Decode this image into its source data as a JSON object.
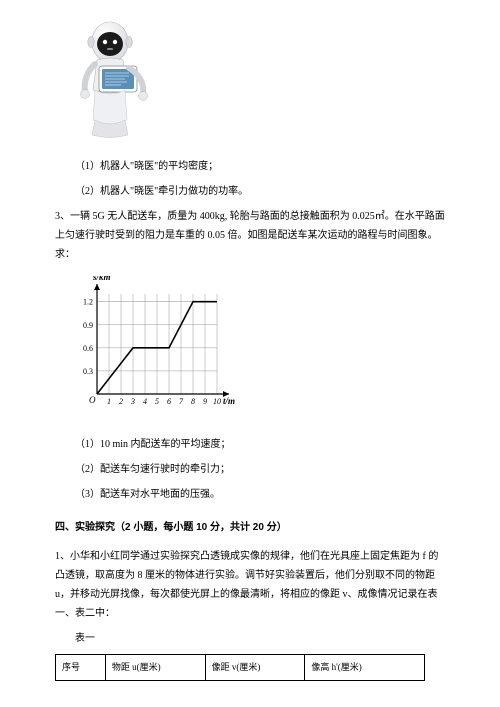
{
  "robot_svg": {
    "body_color": "#e8eaed",
    "screen_color": "#5a8fb8",
    "outline": "#444444"
  },
  "q1_1": "（1）机器人\"晓医\"的平均密度；",
  "q1_2": "（2）机器人\"晓医\"牵引力做功的功率。",
  "q3_intro": "3、一辆 5G 无人配送车，质量为 400kg, 轮胎与路面的总接触面积为 0.025㎡。在水平路面上匀速行驶时受到的阻力是车重的 0.05 倍。如图是配送车某次运动的路程与时间图象。求：",
  "chart": {
    "ylabel": "s/km",
    "xlabel": "t/min",
    "xmax": 10,
    "ymax": 1.3,
    "yticks": [
      0.3,
      0.6,
      0.9,
      1.2
    ],
    "xticks": [
      1,
      2,
      3,
      4,
      5,
      6,
      7,
      8,
      9,
      10
    ],
    "grid_color": "#999999",
    "line_color": "#000000",
    "bg_color": "#ffffff",
    "points": [
      [
        0,
        0
      ],
      [
        3,
        0.6
      ],
      [
        6,
        0.6
      ],
      [
        8,
        1.2
      ],
      [
        10,
        1.2
      ]
    ]
  },
  "q3_1": "（1）10 min 内配送车的平均速度；",
  "q3_2": "（2）配送车匀速行驶时的牵引力；",
  "q3_3": "（3）配送车对水平地面的压强。",
  "section4_title": "四、实验探究（2 小题，每小题 10 分，共计 20 分）",
  "q4_intro": "1、小华和小红同学通过实验探究凸透镜成实像的规律，他们在光具座上固定焦距为 f 的凸透镜，取高度为 8 厘米的物体进行实验。调节好实验装置后，他们分别取不同的物距 u，并移动光屏找像，每次都使光屏上的像最清晰，将相应的像距 v、成像情况记录在表一、表二中：",
  "table1_caption": "表一",
  "table1": {
    "headers": [
      "序号",
      "物距 u(厘米)",
      "像距 v(厘米)",
      "像高 h'(厘米)"
    ]
  }
}
